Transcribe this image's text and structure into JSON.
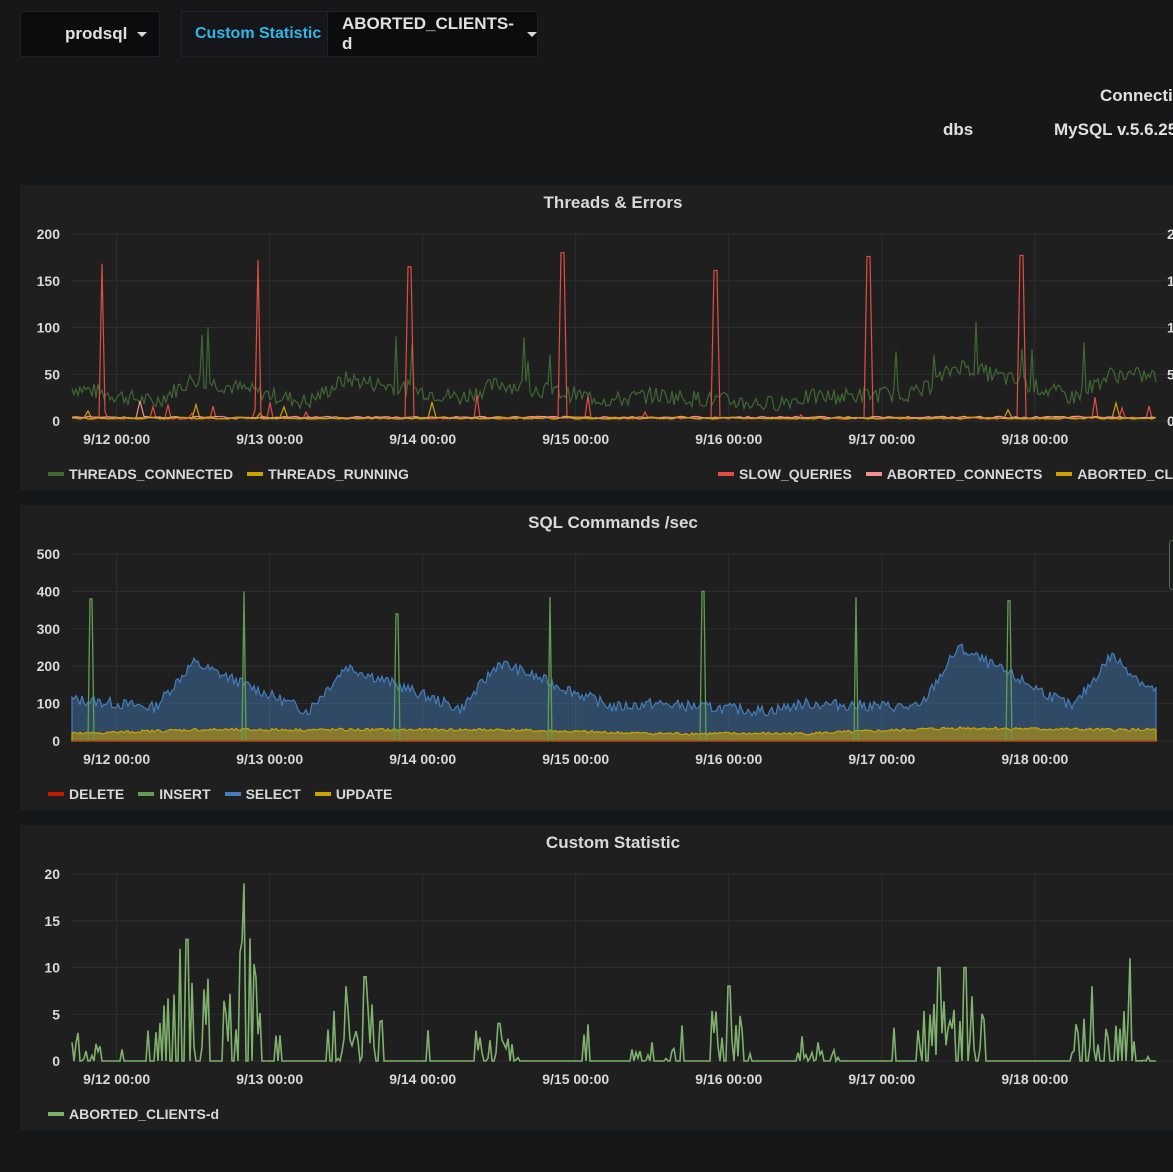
{
  "toolbar": {
    "server_select": "prodsql",
    "stat_label": "Custom Statistic",
    "stat_select": "ABORTED_CLIENTS-d"
  },
  "info": {
    "title": "Connectio",
    "key": "dbs",
    "value": "MySQL v.5.6.25"
  },
  "x_ticks": [
    "9/12 00:00",
    "9/13 00:00",
    "9/14 00:00",
    "9/15 00:00",
    "9/16 00:00",
    "9/17 00:00",
    "9/18 00:00"
  ],
  "panels": {
    "threads": {
      "title": "Threads & Errors",
      "legend_left": [
        {
          "name": "THREADS_CONNECTED",
          "color": "#3f6833"
        },
        {
          "name": "THREADS_RUNNING",
          "color": "#cca300"
        }
      ],
      "legend_right": [
        {
          "name": "SLOW_QUERIES",
          "color": "#e24d42"
        },
        {
          "name": "ABORTED_CONNECTS",
          "color": "#f29191"
        },
        {
          "name": "ABORTED_CLIEN",
          "color": "#cca300"
        }
      ]
    },
    "sql": {
      "title": "SQL Commands /sec",
      "legend": [
        {
          "name": "DELETE",
          "color": "#bf1b00"
        },
        {
          "name": "INSERT",
          "color": "#629e51"
        },
        {
          "name": "SELECT",
          "color": "#447ebc"
        },
        {
          "name": "UPDATE",
          "color": "#cca300"
        }
      ]
    },
    "custom": {
      "title": "Custom Statistic",
      "legend": [
        {
          "name": "ABORTED_CLIENTS-d",
          "color": "#7eb26d"
        }
      ]
    }
  },
  "chart_data": [
    {
      "type": "line",
      "title": "Threads & Errors",
      "x_unit": "date",
      "x_range": [
        "2015-09-11 17:00",
        "2015-09-18 19:00"
      ],
      "ylim": [
        0,
        200
      ],
      "yticks": [
        0,
        50,
        100,
        150,
        200
      ],
      "grid": true,
      "legend_placement": "bottom",
      "series": [
        {
          "name": "THREADS_CONNECTED",
          "color": "#3f6833",
          "x": [
            "2015-09-11 18:00",
            "2015-09-12 06:00",
            "2015-09-12 12:00",
            "2015-09-13 06:00",
            "2015-09-13 12:00",
            "2015-09-14 06:00",
            "2015-09-14 12:00",
            "2015-09-15 06:00",
            "2015-09-15 12:00",
            "2015-09-16 06:00",
            "2015-09-16 12:00",
            "2015-09-17 06:00",
            "2015-09-17 12:00",
            "2015-09-18 06:00",
            "2015-09-18 12:00",
            "2015-09-18 18:00"
          ],
          "values": [
            35,
            20,
            45,
            20,
            45,
            25,
            40,
            22,
            28,
            18,
            25,
            30,
            60,
            25,
            50,
            48
          ]
        },
        {
          "name": "THREADS_RUNNING",
          "color": "#cca300",
          "x": [
            "2015-09-11 18:00",
            "2015-09-18 18:00"
          ],
          "values": [
            2,
            2
          ]
        },
        {
          "name": "SLOW_QUERIES",
          "color": "#e24d42",
          "x": [
            "2015-09-11 22:00",
            "2015-09-12 22:00",
            "2015-09-13 22:00",
            "2015-09-14 22:00",
            "2015-09-15 22:00",
            "2015-09-16 22:00",
            "2015-09-17 22:00"
          ],
          "values": [
            168,
            172,
            165,
            180,
            161,
            176,
            177
          ]
        },
        {
          "name": "ABORTED_CONNECTS",
          "color": "#f29191",
          "x": [
            "2015-09-11 18:00",
            "2015-09-18 18:00"
          ],
          "values": [
            3,
            3
          ]
        },
        {
          "name": "ABORTED_CLIEN",
          "color": "#cca300",
          "x": [
            "2015-09-11 18:00",
            "2015-09-18 18:00"
          ],
          "values": [
            2,
            2
          ]
        }
      ]
    },
    {
      "type": "area",
      "title": "SQL Commands /sec",
      "x_unit": "date",
      "x_range": [
        "2015-09-11 17:00",
        "2015-09-18 19:00"
      ],
      "ylim": [
        0,
        500
      ],
      "yticks": [
        0,
        100,
        200,
        300,
        400,
        500
      ],
      "grid": true,
      "legend_placement": "bottom",
      "series": [
        {
          "name": "DELETE",
          "color": "#bf1b00",
          "x": [
            "2015-09-11 18:00",
            "2015-09-18 18:00"
          ],
          "values": [
            0,
            0
          ]
        },
        {
          "name": "INSERT",
          "color": "#629e51",
          "x": [
            "2015-09-11 20:00",
            "2015-09-12 20:00",
            "2015-09-13 20:00",
            "2015-09-14 20:00",
            "2015-09-15 20:00",
            "2015-09-16 20:00",
            "2015-09-17 20:00"
          ],
          "values": [
            380,
            400,
            340,
            385,
            400,
            385,
            375
          ]
        },
        {
          "name": "SELECT",
          "color": "#447ebc",
          "x": [
            "2015-09-11 18:00",
            "2015-09-12 06:00",
            "2015-09-12 12:00",
            "2015-09-13 06:00",
            "2015-09-13 12:00",
            "2015-09-14 06:00",
            "2015-09-14 12:00",
            "2015-09-15 06:00",
            "2015-09-15 12:00",
            "2015-09-16 06:00",
            "2015-09-16 12:00",
            "2015-09-17 06:00",
            "2015-09-17 12:00",
            "2015-09-18 06:00",
            "2015-09-18 12:00",
            "2015-09-18 18:00"
          ],
          "values": [
            110,
            90,
            210,
            80,
            200,
            85,
            210,
            90,
            100,
            80,
            100,
            90,
            250,
            90,
            230,
            140
          ]
        },
        {
          "name": "UPDATE",
          "color": "#cca300",
          "x": [
            "2015-09-11 18:00",
            "2015-09-12 12:00",
            "2015-09-13 12:00",
            "2015-09-14 12:00",
            "2015-09-15 12:00",
            "2015-09-16 12:00",
            "2015-09-17 12:00",
            "2015-09-18 12:00"
          ],
          "values": [
            20,
            30,
            30,
            30,
            20,
            20,
            35,
            30
          ]
        }
      ]
    },
    {
      "type": "line",
      "title": "Custom Statistic",
      "x_unit": "date",
      "x_range": [
        "2015-09-11 17:00",
        "2015-09-18 19:00"
      ],
      "ylim": [
        0,
        20
      ],
      "yticks": [
        0,
        5,
        10,
        15,
        20
      ],
      "grid": true,
      "legend_placement": "bottom",
      "series": [
        {
          "name": "ABORTED_CLIENTS-d",
          "color": "#7eb26d",
          "x": [
            "2015-09-11 18:00",
            "2015-09-12 10:00",
            "2015-09-12 11:00",
            "2015-09-12 20:00",
            "2015-09-13 12:00",
            "2015-09-13 15:00",
            "2015-09-14 12:00",
            "2015-09-15 12:00",
            "2015-09-16 00:00",
            "2015-09-16 14:00",
            "2015-09-17 09:00",
            "2015-09-17 13:00",
            "2015-09-18 09:00",
            "2015-09-18 15:00"
          ],
          "values": [
            3,
            12,
            13,
            19,
            8,
            9,
            4,
            2,
            8,
            2,
            10,
            10,
            8,
            11
          ]
        }
      ]
    }
  ]
}
